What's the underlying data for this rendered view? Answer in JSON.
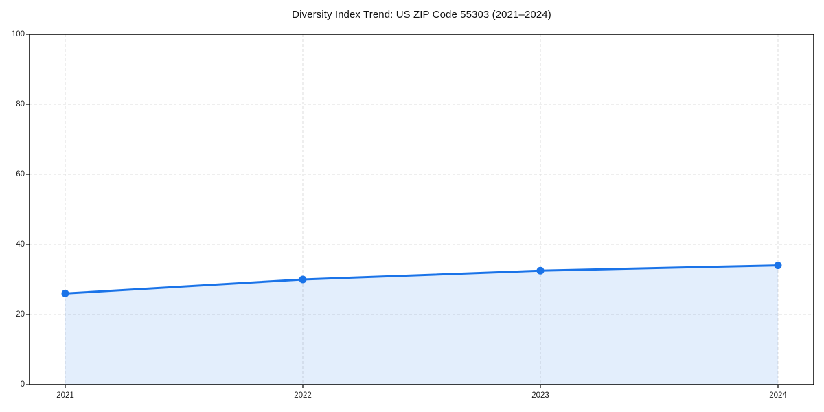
{
  "chart_data": {
    "type": "area",
    "title": "Diversity Index Trend: US ZIP Code 55303 (2021–2024)",
    "categories": [
      "2021",
      "2022",
      "2023",
      "2024"
    ],
    "values": [
      26,
      30,
      32.5,
      34
    ],
    "xlabel": "",
    "ylabel": "",
    "ylim": [
      0,
      100
    ],
    "yticks": [
      0,
      20,
      40,
      60,
      80,
      100
    ],
    "grid": true,
    "grid_style": "dashed",
    "legend": "none",
    "marker": "circle",
    "colors": {
      "line": "#1a73e8",
      "fill": "rgba(26,115,232,0.12)",
      "grid": "#dcdcdc",
      "axis": "#000000",
      "tick_text": "#1a1a1a",
      "background": "#ffffff"
    }
  }
}
